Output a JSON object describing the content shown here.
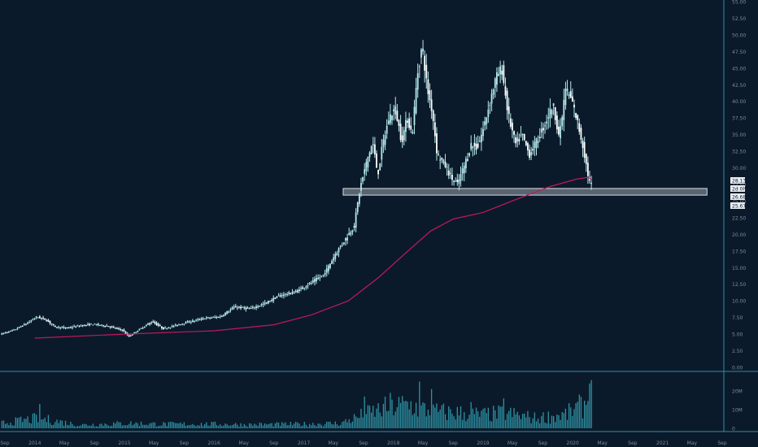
{
  "colors": {
    "background": "#0b1a2a",
    "candle": "#b4e9ec",
    "volume": "#2e93a4",
    "moving_average": "#c2185b",
    "support_zone": "#9aa3ab",
    "axis_line": "#2b8fa8",
    "tick_text": "#7f8c97",
    "price_tag_bg": "#e8edf0",
    "price_tag_text": "#0b1a2a"
  },
  "chart_data": {
    "type": "candlestick",
    "interval": "weekly",
    "x_ticks": [
      "Sep",
      "2014",
      "May",
      "Sep",
      "2015",
      "May",
      "Sep",
      "2016",
      "May",
      "Sep",
      "2017",
      "May",
      "Sep",
      "2018",
      "May",
      "Sep",
      "2019",
      "May",
      "Sep",
      "2020",
      "May",
      "Sep",
      "2021",
      "May",
      "Sep"
    ],
    "x_tick_dates": [
      "2013-09-01",
      "2014-01-01",
      "2014-05-01",
      "2014-09-01",
      "2015-01-01",
      "2015-05-01",
      "2015-09-01",
      "2016-01-01",
      "2016-05-01",
      "2016-09-01",
      "2017-01-01",
      "2017-05-01",
      "2017-09-01",
      "2018-01-01",
      "2018-05-01",
      "2018-09-01",
      "2019-01-01",
      "2019-05-01",
      "2019-09-01",
      "2020-01-01",
      "2020-05-01",
      "2020-09-01",
      "2021-01-01",
      "2021-05-01",
      "2021-09-01"
    ],
    "price_ticks": [
      "55.00",
      "52.50",
      "50.00",
      "47.50",
      "45.00",
      "42.50",
      "40.00",
      "37.50",
      "35.00",
      "32.50",
      "30.00",
      "27.50",
      "25.00",
      "22.50",
      "20.00",
      "17.50",
      "15.00",
      "12.50",
      "10.00",
      "7.50",
      "5.00",
      "2.50",
      "0.00"
    ],
    "price_tick_values": [
      55,
      52.5,
      50,
      47.5,
      45,
      42.5,
      40,
      37.5,
      35,
      32.5,
      30,
      27.5,
      25,
      22.5,
      20,
      17.5,
      15,
      12.5,
      10,
      7.5,
      5,
      2.5,
      0
    ],
    "volume_ticks": [
      "20M",
      "10M",
      "0"
    ],
    "volume_tick_values": [
      20000000,
      10000000,
      0
    ],
    "price_tags": [
      {
        "label": "28.13",
        "value": 28.13
      },
      {
        "label": "2d 0h",
        "value": 27.4
      },
      {
        "label": "26.68",
        "value": 26.68
      },
      {
        "label": "25.67",
        "value": 25.67
      }
    ],
    "support_zone": {
      "low": 25.9,
      "high": 26.9,
      "start": "2017-06-10",
      "end": "2021-07-01"
    },
    "price_path": [
      [
        "2013-08-20",
        5.0
      ],
      [
        "2013-10-15",
        5.6
      ],
      [
        "2013-12-15",
        6.8
      ],
      [
        "2014-01-15",
        7.6
      ],
      [
        "2014-02-20",
        7.2
      ],
      [
        "2014-04-01",
        6.1
      ],
      [
        "2014-05-15",
        5.9
      ],
      [
        "2014-07-01",
        6.2
      ],
      [
        "2014-09-01",
        6.5
      ],
      [
        "2014-11-01",
        6.2
      ],
      [
        "2015-01-01",
        5.6
      ],
      [
        "2015-01-25",
        4.6
      ],
      [
        "2015-03-01",
        5.5
      ],
      [
        "2015-05-01",
        6.9
      ],
      [
        "2015-06-15",
        5.8
      ],
      [
        "2015-09-01",
        6.6
      ],
      [
        "2015-12-01",
        7.4
      ],
      [
        "2016-02-01",
        7.6
      ],
      [
        "2016-04-01",
        9.1
      ],
      [
        "2016-06-01",
        8.8
      ],
      [
        "2016-08-01",
        9.6
      ],
      [
        "2016-10-01",
        10.8
      ],
      [
        "2016-12-01",
        11.3
      ],
      [
        "2017-02-01",
        12.6
      ],
      [
        "2017-04-01",
        14.0
      ],
      [
        "2017-05-15",
        17.0
      ],
      [
        "2017-07-01",
        19.6
      ],
      [
        "2017-08-01",
        21.3
      ],
      [
        "2017-08-25",
        27.0
      ],
      [
        "2017-09-25",
        31.5
      ],
      [
        "2017-10-15",
        33.8
      ],
      [
        "2017-11-05",
        29.0
      ],
      [
        "2017-11-25",
        33.5
      ],
      [
        "2017-12-20",
        37.5
      ],
      [
        "2018-01-15",
        39.0
      ],
      [
        "2018-02-10",
        34.0
      ],
      [
        "2018-03-05",
        37.5
      ],
      [
        "2018-03-25",
        35.0
      ],
      [
        "2018-04-15",
        44.0
      ],
      [
        "2018-05-05",
        48.5
      ],
      [
        "2018-05-25",
        42.0
      ],
      [
        "2018-06-15",
        38.5
      ],
      [
        "2018-07-05",
        32.0
      ],
      [
        "2018-08-05",
        30.5
      ],
      [
        "2018-09-01",
        28.5
      ],
      [
        "2018-09-25",
        27.5
      ],
      [
        "2018-10-25",
        30.5
      ],
      [
        "2018-11-20",
        33.5
      ],
      [
        "2018-12-15",
        33.0
      ],
      [
        "2019-01-10",
        36.0
      ],
      [
        "2019-02-05",
        40.0
      ],
      [
        "2019-03-01",
        43.5
      ],
      [
        "2019-03-25",
        45.0
      ],
      [
        "2019-04-20",
        38.0
      ],
      [
        "2019-05-20",
        33.5
      ],
      [
        "2019-06-15",
        35.0
      ],
      [
        "2019-07-15",
        32.0
      ],
      [
        "2019-08-15",
        34.0
      ],
      [
        "2019-09-15",
        36.5
      ],
      [
        "2019-10-20",
        39.5
      ],
      [
        "2019-11-15",
        34.5
      ],
      [
        "2019-12-10",
        42.0
      ],
      [
        "2020-01-05",
        40.0
      ],
      [
        "2020-01-30",
        36.5
      ],
      [
        "2020-02-20",
        33.0
      ],
      [
        "2020-03-10",
        29.0
      ],
      [
        "2020-03-20",
        27.4
      ]
    ],
    "ma_path": [
      [
        "2014-01-01",
        4.4
      ],
      [
        "2015-01-01",
        5.0
      ],
      [
        "2016-01-01",
        5.5
      ],
      [
        "2016-09-01",
        6.4
      ],
      [
        "2017-02-01",
        7.9
      ],
      [
        "2017-07-01",
        10.0
      ],
      [
        "2017-11-01",
        13.5
      ],
      [
        "2018-03-01",
        17.5
      ],
      [
        "2018-06-01",
        20.5
      ],
      [
        "2018-09-01",
        22.3
      ],
      [
        "2019-01-01",
        23.3
      ],
      [
        "2019-06-01",
        25.5
      ],
      [
        "2019-10-01",
        27.2
      ],
      [
        "2020-01-15",
        28.3
      ],
      [
        "2020-03-05",
        28.6
      ],
      [
        "2020-03-20",
        28.1
      ]
    ],
    "volume_path": [
      [
        "2013-08-20",
        3.0
      ],
      [
        "2014-01-15",
        6.0
      ],
      [
        "2014-07-01",
        2.0
      ],
      [
        "2015-01-20",
        3.0
      ],
      [
        "2015-06-01",
        2.5
      ],
      [
        "2016-01-01",
        2.5
      ],
      [
        "2016-06-01",
        2.2
      ],
      [
        "2017-01-01",
        2.5
      ],
      [
        "2017-06-01",
        3.0
      ],
      [
        "2017-09-01",
        8.0
      ],
      [
        "2017-12-01",
        12.0
      ],
      [
        "2018-03-01",
        14.0
      ],
      [
        "2018-06-01",
        10.0
      ],
      [
        "2018-10-01",
        9.0
      ],
      [
        "2019-01-01",
        8.0
      ],
      [
        "2019-04-01",
        9.0
      ],
      [
        "2019-08-01",
        6.0
      ],
      [
        "2019-12-01",
        8.0
      ],
      [
        "2020-02-15",
        14.0
      ],
      [
        "2020-03-20",
        20.0
      ]
    ],
    "volume_spikes": [
      [
        "2018-04-20",
        25.0
      ],
      [
        "2018-06-10",
        21.0
      ],
      [
        "2017-12-20",
        19.0
      ],
      [
        "2019-03-25",
        16.0
      ],
      [
        "2020-03-10",
        24.0
      ],
      [
        "2014-01-20",
        13.0
      ],
      [
        "2017-09-10",
        17.0
      ],
      [
        "2018-11-15",
        14.0
      ]
    ]
  }
}
